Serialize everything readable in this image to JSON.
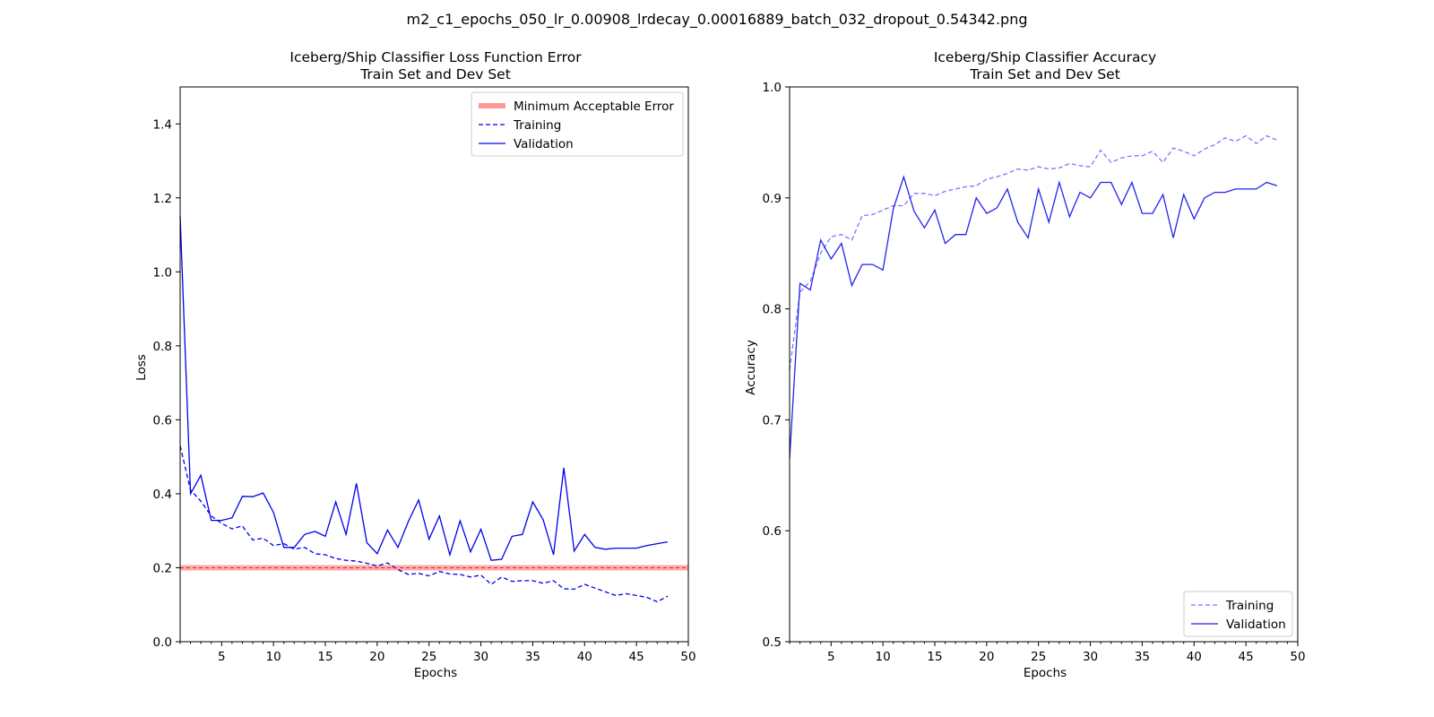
{
  "figure": {
    "suptitle": "m2_c1_epochs_050_lr_0.00908_lrdecay_0.00016889_batch_032_dropout_0.54342.png"
  },
  "chart_data": [
    {
      "type": "line",
      "title_line1": "Iceberg/Ship Classifier Loss Function Error",
      "title_line2": "Train Set and Dev Set",
      "xlabel": "Epochs",
      "ylabel": "Loss",
      "xlim": [
        1,
        50
      ],
      "ylim": [
        0,
        1.5
      ],
      "xticks": [
        5,
        10,
        15,
        20,
        25,
        30,
        35,
        40,
        45,
        50
      ],
      "yticks": [
        0.0,
        0.2,
        0.4,
        0.6,
        0.8,
        1.0,
        1.2,
        1.4
      ],
      "legend_position": "upper right",
      "grid": false,
      "threshold": {
        "name": "Minimum Acceptable Error",
        "value": 0.2,
        "color": "#ff9999"
      },
      "series": [
        {
          "name": "Training",
          "style": "dashed",
          "color": "#0000ee",
          "x": [
            1,
            2,
            3,
            4,
            5,
            6,
            7,
            8,
            9,
            10,
            11,
            12,
            13,
            14,
            15,
            16,
            17,
            18,
            19,
            20,
            21,
            22,
            23,
            24,
            25,
            26,
            27,
            28,
            29,
            30,
            31,
            32,
            33,
            34,
            35,
            36,
            37,
            38,
            39,
            40,
            41,
            42,
            43,
            44,
            45,
            46,
            47,
            48
          ],
          "values": [
            0.53,
            0.41,
            0.38,
            0.34,
            0.32,
            0.305,
            0.313,
            0.275,
            0.28,
            0.26,
            0.265,
            0.25,
            0.255,
            0.238,
            0.235,
            0.225,
            0.22,
            0.218,
            0.212,
            0.205,
            0.213,
            0.195,
            0.182,
            0.185,
            0.178,
            0.19,
            0.183,
            0.182,
            0.175,
            0.18,
            0.155,
            0.175,
            0.163,
            0.165,
            0.165,
            0.158,
            0.165,
            0.143,
            0.142,
            0.155,
            0.145,
            0.135,
            0.125,
            0.13,
            0.125,
            0.12,
            0.108,
            0.123
          ]
        },
        {
          "name": "Validation",
          "style": "solid",
          "color": "#0000ee",
          "x": [
            1,
            2,
            3,
            4,
            5,
            6,
            7,
            8,
            9,
            10,
            11,
            12,
            13,
            14,
            15,
            16,
            17,
            18,
            19,
            20,
            21,
            22,
            23,
            24,
            25,
            26,
            27,
            28,
            29,
            30,
            31,
            32,
            33,
            34,
            35,
            36,
            37,
            38,
            39,
            40,
            41,
            42,
            43,
            44,
            45,
            46,
            47,
            48
          ],
          "values": [
            1.15,
            0.4,
            0.45,
            0.328,
            0.328,
            0.335,
            0.393,
            0.392,
            0.402,
            0.35,
            0.255,
            0.255,
            0.29,
            0.298,
            0.285,
            0.378,
            0.29,
            0.428,
            0.268,
            0.238,
            0.302,
            0.255,
            0.325,
            0.383,
            0.277,
            0.34,
            0.235,
            0.327,
            0.243,
            0.304,
            0.22,
            0.223,
            0.285,
            0.29,
            0.378,
            0.33,
            0.235,
            0.47,
            0.245,
            0.29,
            0.255,
            0.25,
            0.253,
            0.253,
            0.253,
            0.26,
            0.265,
            0.27
          ]
        }
      ]
    },
    {
      "type": "line",
      "title_line1": "Iceberg/Ship Classifier Accuracy",
      "title_line2": "Train Set and Dev Set",
      "xlabel": "Epochs",
      "ylabel": "Accuracy",
      "xlim": [
        1,
        50
      ],
      "ylim": [
        0.5,
        1.0
      ],
      "xticks": [
        5,
        10,
        15,
        20,
        25,
        30,
        35,
        40,
        45,
        50
      ],
      "yticks": [
        0.5,
        0.6,
        0.7,
        0.8,
        0.9,
        1.0
      ],
      "legend_position": "lower right",
      "grid": false,
      "series": [
        {
          "name": "Training",
          "style": "dashed",
          "color": "#7777ff",
          "x": [
            1,
            2,
            3,
            4,
            5,
            6,
            7,
            8,
            9,
            10,
            11,
            12,
            13,
            14,
            15,
            16,
            17,
            18,
            19,
            20,
            21,
            22,
            23,
            24,
            25,
            26,
            27,
            28,
            29,
            30,
            31,
            32,
            33,
            34,
            35,
            36,
            37,
            38,
            39,
            40,
            41,
            42,
            43,
            44,
            45,
            46,
            47,
            48
          ],
          "values": [
            0.745,
            0.815,
            0.825,
            0.85,
            0.865,
            0.867,
            0.862,
            0.884,
            0.885,
            0.889,
            0.893,
            0.893,
            0.904,
            0.904,
            0.902,
            0.906,
            0.908,
            0.91,
            0.911,
            0.917,
            0.919,
            0.922,
            0.926,
            0.925,
            0.928,
            0.926,
            0.927,
            0.931,
            0.929,
            0.928,
            0.943,
            0.932,
            0.936,
            0.938,
            0.938,
            0.942,
            0.932,
            0.945,
            0.942,
            0.938,
            0.944,
            0.948,
            0.954,
            0.951,
            0.956,
            0.949,
            0.956,
            0.952
          ]
        },
        {
          "name": "Validation",
          "style": "solid",
          "color": "#2222ee",
          "x": [
            1,
            2,
            3,
            4,
            5,
            6,
            7,
            8,
            9,
            10,
            11,
            12,
            13,
            14,
            15,
            16,
            17,
            18,
            19,
            20,
            21,
            22,
            23,
            24,
            25,
            26,
            27,
            28,
            29,
            30,
            31,
            32,
            33,
            34,
            35,
            36,
            37,
            38,
            39,
            40,
            41,
            42,
            43,
            44,
            45,
            46,
            47,
            48
          ],
          "values": [
            0.665,
            0.823,
            0.817,
            0.862,
            0.845,
            0.859,
            0.821,
            0.84,
            0.84,
            0.835,
            0.89,
            0.919,
            0.888,
            0.873,
            0.889,
            0.859,
            0.867,
            0.867,
            0.9,
            0.886,
            0.891,
            0.908,
            0.878,
            0.864,
            0.908,
            0.878,
            0.914,
            0.883,
            0.905,
            0.9,
            0.914,
            0.914,
            0.894,
            0.914,
            0.886,
            0.886,
            0.903,
            0.864,
            0.903,
            0.881,
            0.9,
            0.905,
            0.905,
            0.908,
            0.908,
            0.908,
            0.914,
            0.911
          ]
        }
      ]
    }
  ]
}
